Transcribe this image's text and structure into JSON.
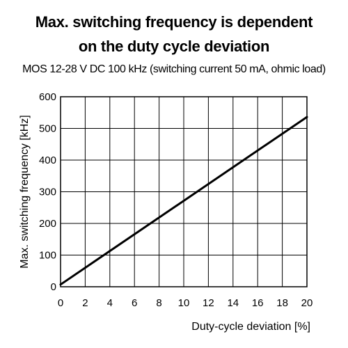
{
  "chart_data": {
    "type": "line",
    "title": [
      "Max. switching frequency is dependent",
      "on the duty cycle deviation"
    ],
    "subtitle": "MOS 12-28 V DC 100 kHz (switching current 50 mA, ohmic load)",
    "xlabel": "Duty-cycle deviation [%]",
    "ylabel": "Max. switching frequency [kHz]",
    "xlim": [
      0,
      20
    ],
    "ylim": [
      0,
      600
    ],
    "xticks": [
      0,
      2,
      4,
      6,
      8,
      10,
      12,
      14,
      16,
      18,
      20
    ],
    "yticks": [
      0,
      100,
      200,
      300,
      400,
      500,
      600
    ],
    "grid": true,
    "legend": "none",
    "series": [
      {
        "x": [
          0,
          20
        ],
        "y": [
          7,
          536
        ],
        "color": "#000000"
      }
    ]
  }
}
